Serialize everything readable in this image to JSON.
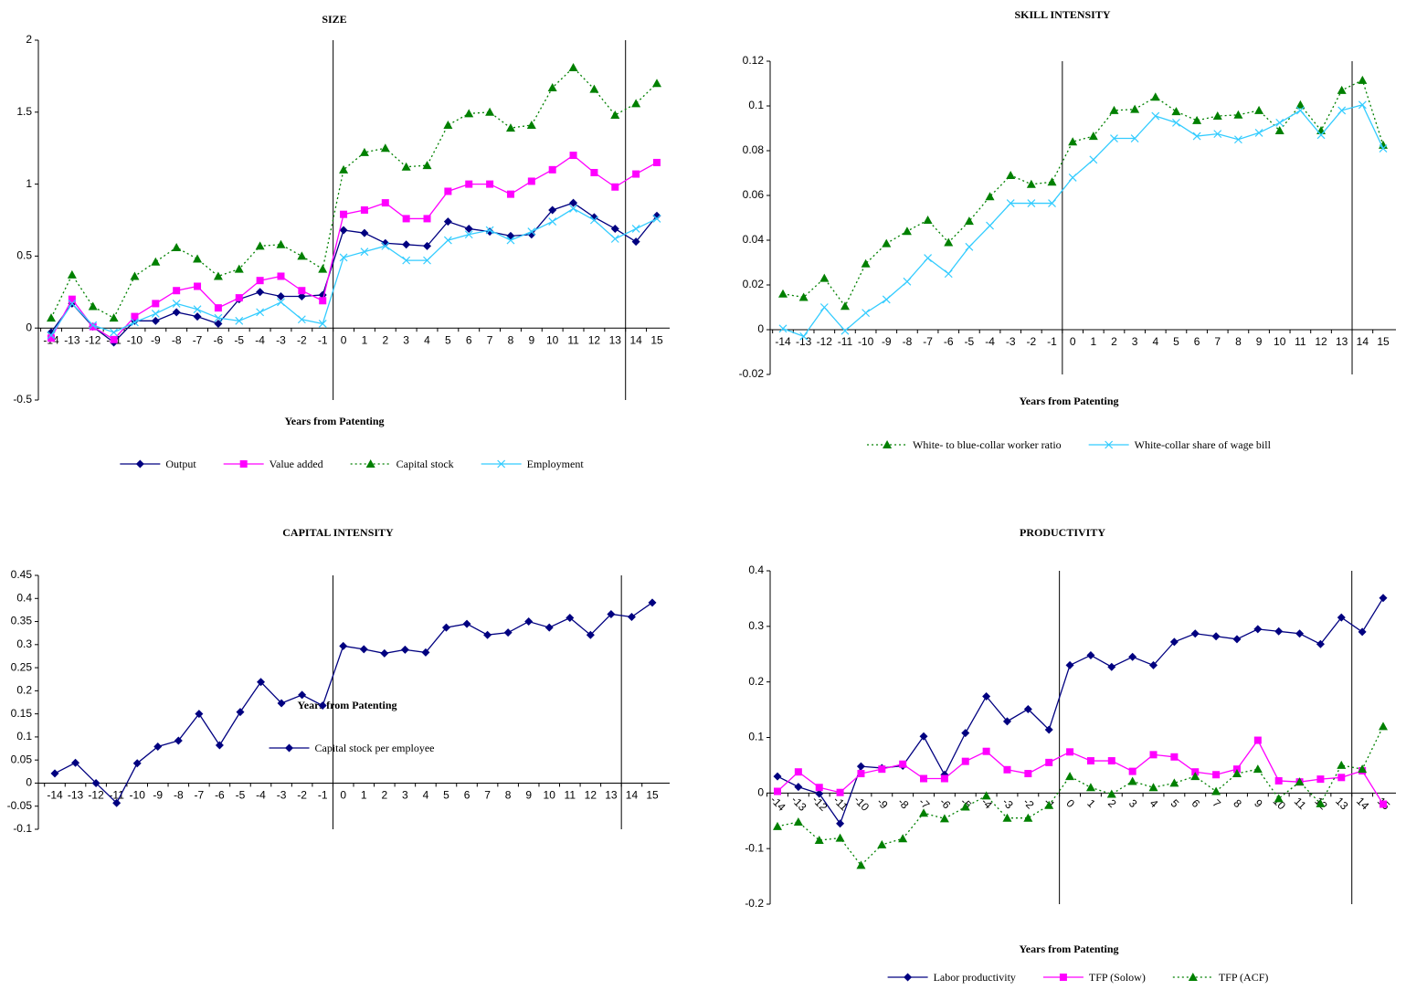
{
  "chart_data": [
    {
      "type": "line",
      "title": "SIZE",
      "xlabel": "Years from Patenting",
      "categories": [
        "-14",
        "-13",
        "-12",
        "-11",
        "-10",
        "-9",
        "-8",
        "-7",
        "-6",
        "-5",
        "-4",
        "-3",
        "-2",
        "-1",
        "0",
        "1",
        "2",
        "3",
        "4",
        "5",
        "6",
        "7",
        "8",
        "9",
        "10",
        "11",
        "12",
        "13",
        "14",
        "15"
      ],
      "vlines_after": [
        "-1",
        "13"
      ],
      "ylim": [
        -0.5,
        2
      ],
      "yticks": [
        -0.5,
        0,
        0.5,
        1,
        1.5,
        2
      ],
      "series": [
        {
          "name": "Output",
          "color": "#000080",
          "marker": "diamond",
          "dashed": false,
          "values": [
            -0.03,
            0.17,
            0.01,
            -0.1,
            0.05,
            0.05,
            0.11,
            0.08,
            0.03,
            0.2,
            0.25,
            0.22,
            0.22,
            0.23,
            0.68,
            0.66,
            0.59,
            0.58,
            0.57,
            0.74,
            0.69,
            0.67,
            0.64,
            0.65,
            0.82,
            0.87,
            0.77,
            0.69,
            0.6,
            0.78
          ]
        },
        {
          "name": "Value added",
          "color": "#FF00FF",
          "marker": "square",
          "dashed": false,
          "values": [
            -0.07,
            0.2,
            0.01,
            -0.08,
            0.08,
            0.17,
            0.26,
            0.29,
            0.14,
            0.21,
            0.33,
            0.36,
            0.26,
            0.19,
            0.79,
            0.82,
            0.87,
            0.76,
            0.76,
            0.95,
            1.0,
            1.0,
            0.93,
            1.02,
            1.1,
            1.2,
            1.08,
            0.98,
            1.07,
            1.15
          ]
        },
        {
          "name": "Capital stock",
          "color": "#008000",
          "marker": "triangle",
          "dashed": true,
          "values": [
            0.07,
            0.37,
            0.15,
            0.07,
            0.36,
            0.46,
            0.56,
            0.48,
            0.36,
            0.41,
            0.57,
            0.58,
            0.5,
            0.41,
            1.1,
            1.22,
            1.25,
            1.12,
            1.13,
            1.41,
            1.49,
            1.5,
            1.39,
            1.41,
            1.67,
            1.81,
            1.66,
            1.48,
            1.56,
            1.7
          ]
        },
        {
          "name": "Employment",
          "color": "#33CCFF",
          "marker": "cross",
          "dashed": false,
          "values": [
            -0.05,
            0.17,
            0.02,
            -0.03,
            0.04,
            0.1,
            0.17,
            0.13,
            0.07,
            0.05,
            0.11,
            0.18,
            0.06,
            0.03,
            0.49,
            0.53,
            0.57,
            0.47,
            0.47,
            0.61,
            0.65,
            0.68,
            0.61,
            0.67,
            0.74,
            0.83,
            0.75,
            0.62,
            0.69,
            0.76
          ]
        }
      ]
    },
    {
      "type": "line",
      "title": "SKILL INTENSITY",
      "xlabel": "Years from Patenting",
      "categories": [
        "-14",
        "-13",
        "-12",
        "-11",
        "-10",
        "-9",
        "-8",
        "-7",
        "-6",
        "-5",
        "-4",
        "-3",
        "-2",
        "-1",
        "0",
        "1",
        "2",
        "3",
        "4",
        "5",
        "6",
        "7",
        "8",
        "9",
        "10",
        "11",
        "12",
        "13",
        "14",
        "15"
      ],
      "vlines_after": [
        "-1",
        "13"
      ],
      "ylim": [
        -0.02,
        0.12
      ],
      "yticks": [
        -0.02,
        0,
        0.02,
        0.04,
        0.06,
        0.08,
        0.1,
        0.12
      ],
      "series": [
        {
          "name": "White- to blue-collar worker ratio",
          "color": "#008000",
          "marker": "triangle",
          "dashed": true,
          "values": [
            0.016,
            0.0145,
            0.023,
            0.0105,
            0.0295,
            0.0385,
            0.044,
            0.049,
            0.039,
            0.0485,
            0.0595,
            0.069,
            0.065,
            0.066,
            0.084,
            0.0865,
            0.098,
            0.0985,
            0.104,
            0.0975,
            0.0935,
            0.0955,
            0.096,
            0.098,
            0.089,
            0.1005,
            0.089,
            0.107,
            0.1115,
            0.0825
          ]
        },
        {
          "name": "White-collar share of wage bill",
          "color": "#33CCFF",
          "marker": "cross",
          "dashed": false,
          "values": [
            0.0005,
            -0.003,
            0.01,
            -0.0005,
            0.0075,
            0.0135,
            0.0215,
            0.032,
            0.025,
            0.037,
            0.0465,
            0.0565,
            0.0565,
            0.0565,
            0.068,
            0.076,
            0.0855,
            0.0855,
            0.0955,
            0.0925,
            0.0865,
            0.0875,
            0.085,
            0.088,
            0.0925,
            0.098,
            0.087,
            0.098,
            0.1005,
            0.081
          ]
        }
      ]
    },
    {
      "type": "line",
      "title": "CAPITAL INTENSITY",
      "xlabel": "Years from Patenting",
      "categories": [
        "-14",
        "-13",
        "-12",
        "-11",
        "-10",
        "-9",
        "-8",
        "-7",
        "-6",
        "-5",
        "-4",
        "-3",
        "-2",
        "-1",
        "0",
        "1",
        "2",
        "3",
        "4",
        "5",
        "6",
        "7",
        "8",
        "9",
        "10",
        "11",
        "12",
        "13",
        "14",
        "15"
      ],
      "vlines_after": [
        "-1",
        "13"
      ],
      "ylim": [
        -0.1,
        0.45
      ],
      "yticks": [
        -0.1,
        -0.05,
        0,
        0.05,
        0.1,
        0.15,
        0.2,
        0.25,
        0.3,
        0.35,
        0.4,
        0.45
      ],
      "series": [
        {
          "name": "Capital stock per employee",
          "color": "#000080",
          "marker": "diamond",
          "dashed": false,
          "values": [
            0.021,
            0.044,
            0.0,
            -0.043,
            0.043,
            0.079,
            0.092,
            0.15,
            0.082,
            0.154,
            0.219,
            0.173,
            0.191,
            0.168,
            0.297,
            0.29,
            0.281,
            0.289,
            0.283,
            0.337,
            0.345,
            0.321,
            0.326,
            0.35,
            0.337,
            0.358,
            0.321,
            0.366,
            0.36,
            0.391
          ]
        }
      ]
    },
    {
      "type": "line",
      "title": "PRODUCTIVITY",
      "xlabel": "Years from Patenting",
      "categories": [
        "-14",
        "-13",
        "-12",
        "-11",
        "-10",
        "-9",
        "-8",
        "-7",
        "-6",
        "-5",
        "-4",
        "-3",
        "-2",
        "-1",
        "0",
        "1",
        "2",
        "3",
        "4",
        "5",
        "6",
        "7",
        "8",
        "9",
        "10",
        "11",
        "12",
        "13",
        "14",
        "15"
      ],
      "vlines_after": [
        "-1",
        "13"
      ],
      "ylim": [
        -0.2,
        0.4
      ],
      "yticks": [
        -0.2,
        -0.1,
        0,
        0.1,
        0.2,
        0.3,
        0.4
      ],
      "series": [
        {
          "name": "Labor productivity",
          "color": "#000080",
          "marker": "diamond",
          "dashed": false,
          "values": [
            0.03,
            0.011,
            -0.001,
            -0.055,
            0.048,
            0.045,
            0.049,
            0.102,
            0.033,
            0.108,
            0.174,
            0.129,
            0.151,
            0.114,
            0.23,
            0.248,
            0.227,
            0.245,
            0.23,
            0.272,
            0.287,
            0.282,
            0.277,
            0.295,
            0.291,
            0.287,
            0.268,
            0.316,
            0.29,
            0.351
          ]
        },
        {
          "name": "TFP (Solow)",
          "color": "#FF00FF",
          "marker": "square",
          "dashed": false,
          "values": [
            0.003,
            0.038,
            0.01,
            0.001,
            0.035,
            0.043,
            0.052,
            0.026,
            0.026,
            0.057,
            0.075,
            0.042,
            0.035,
            0.055,
            0.074,
            0.058,
            0.058,
            0.039,
            0.069,
            0.065,
            0.038,
            0.033,
            0.043,
            0.095,
            0.022,
            0.02,
            0.025,
            0.028,
            0.04,
            -0.02
          ]
        },
        {
          "name": "TFP (ACF)",
          "color": "#008000",
          "marker": "triangle",
          "dashed": true,
          "values": [
            -0.06,
            -0.052,
            -0.085,
            -0.081,
            -0.13,
            -0.093,
            -0.082,
            -0.036,
            -0.046,
            -0.025,
            -0.005,
            -0.045,
            -0.045,
            -0.022,
            0.03,
            0.01,
            -0.002,
            0.021,
            0.01,
            0.018,
            0.03,
            0.003,
            0.035,
            0.043,
            -0.01,
            0.02,
            -0.019,
            0.05,
            0.043,
            0.12
          ]
        }
      ]
    }
  ]
}
